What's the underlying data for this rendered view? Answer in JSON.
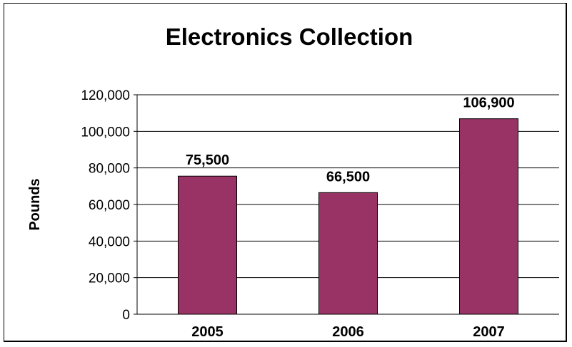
{
  "chart_data": {
    "type": "bar",
    "title": "Electronics Collection",
    "xlabel": "",
    "ylabel": "Pounds",
    "categories": [
      "2005",
      "2006",
      "2007"
    ],
    "values": [
      75500,
      66500,
      106900
    ],
    "data_labels": [
      "75,500",
      "66,500",
      "106,900"
    ],
    "ylim": [
      0,
      120000
    ],
    "yticks": [
      0,
      20000,
      40000,
      60000,
      80000,
      100000,
      120000
    ],
    "ytick_labels": [
      "0",
      "20,000",
      "40,000",
      "60,000",
      "80,000",
      "100,000",
      "120,000"
    ],
    "grid": true,
    "legend": "none",
    "bar_color": "#993366"
  }
}
